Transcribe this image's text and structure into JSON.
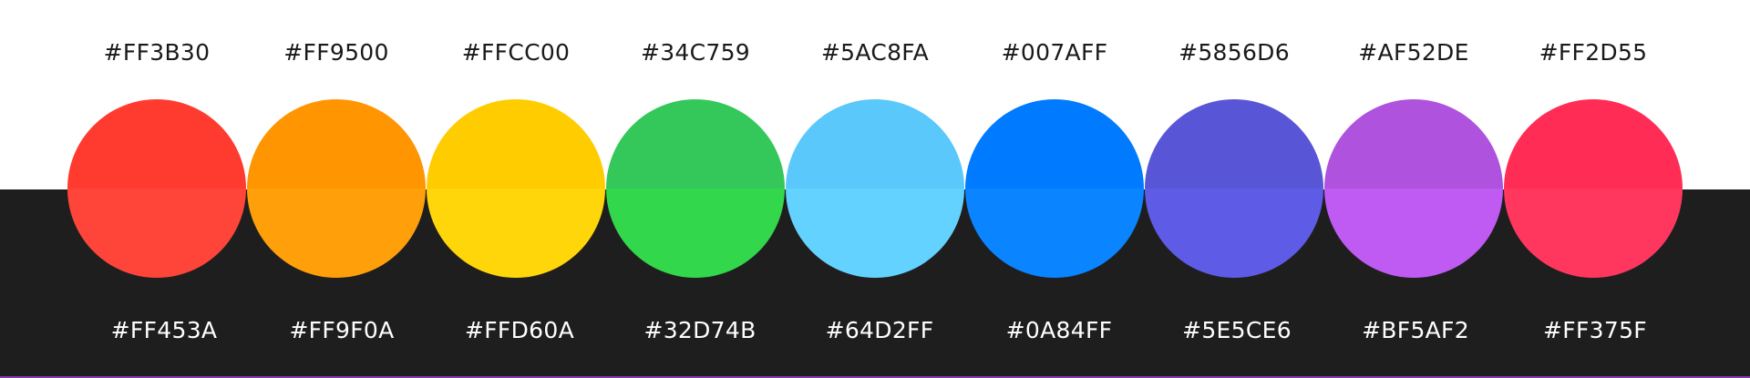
{
  "colors": [
    {
      "light": "#FF3B30",
      "dark": "#FF453A"
    },
    {
      "light": "#FF9500",
      "dark": "#FF9F0A"
    },
    {
      "light": "#FFCC00",
      "dark": "#FFD60A"
    },
    {
      "light": "#34C759",
      "dark": "#32D74B"
    },
    {
      "light": "#5AC8FA",
      "dark": "#64D2FF"
    },
    {
      "light": "#007AFF",
      "dark": "#0A84FF"
    },
    {
      "light": "#5856D6",
      "dark": "#5E5CE6"
    },
    {
      "light": "#AF52DE",
      "dark": "#BF5AF2"
    },
    {
      "light": "#FF2D55",
      "dark": "#FF375F"
    }
  ],
  "background": {
    "light": "#FFFFFF",
    "dark": "#1F1E1F"
  }
}
